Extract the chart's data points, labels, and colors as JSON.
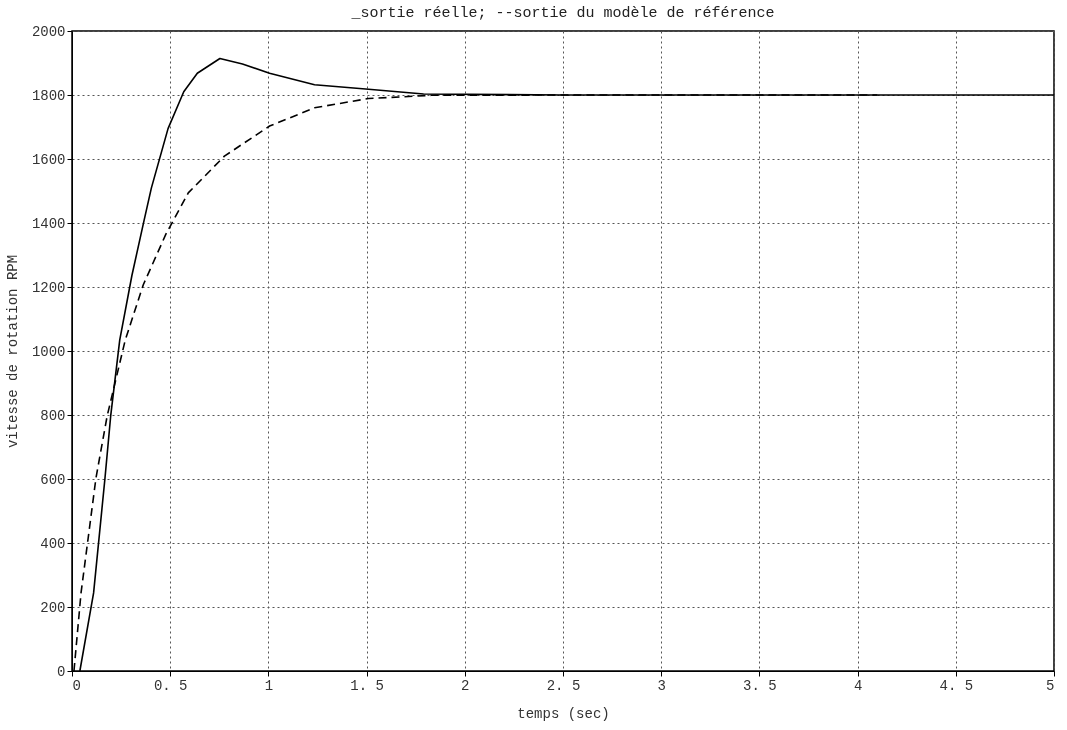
{
  "chart_data": {
    "type": "line",
    "title": "_sortie réelle; --sortie du modèle de référence",
    "xlabel": "temps (sec)",
    "ylabel": "vitesse de rotation RPM",
    "xlim": [
      0,
      5
    ],
    "ylim": [
      0,
      2000
    ],
    "xticks": [
      0,
      {
        "value": 0.5,
        "label": "0. 5"
      },
      1,
      {
        "value": 1.5,
        "label": "1. 5"
      },
      2,
      {
        "value": 2.5,
        "label": "2. 5"
      },
      3,
      {
        "value": 3.5,
        "label": "3. 5"
      },
      4,
      {
        "value": 4.5,
        "label": "4. 5"
      },
      5
    ],
    "yticks": [
      0,
      200,
      400,
      600,
      800,
      1000,
      1200,
      1400,
      1600,
      1800,
      2000
    ],
    "grid": true,
    "series": [
      {
        "color": "#000000",
        "line_style": "solid",
        "x": [
          0.04,
          0.11,
          0.168,
          0.197,
          0.243,
          0.305,
          0.367,
          0.404,
          0.489,
          0.569,
          0.638,
          0.753,
          0.868,
          1.006,
          1.235,
          1.51,
          1.79,
          2.5,
          3,
          3.5,
          4,
          4.5,
          5
        ],
        "values": [
          0,
          244,
          603,
          797,
          1034,
          1236,
          1408,
          1509,
          1695,
          1810,
          1868,
          1914,
          1897,
          1868,
          1832,
          1818,
          1803,
          1800,
          1800,
          1800,
          1800,
          1800,
          1800
        ]
      },
      {
        "color": "#000000",
        "line_style": "dashed",
        "x": [
          0.01,
          0.046,
          0.122,
          0.179,
          0.271,
          0.363,
          0.478,
          0.592,
          0.776,
          1.006,
          1.235,
          1.51,
          1.83,
          2.5,
          3,
          3.5,
          4.1
        ],
        "values": [
          0,
          244,
          603,
          797,
          1034,
          1207,
          1365,
          1494,
          1609,
          1703,
          1760,
          1789,
          1799,
          1800,
          1800,
          1800,
          1800
        ]
      }
    ]
  }
}
